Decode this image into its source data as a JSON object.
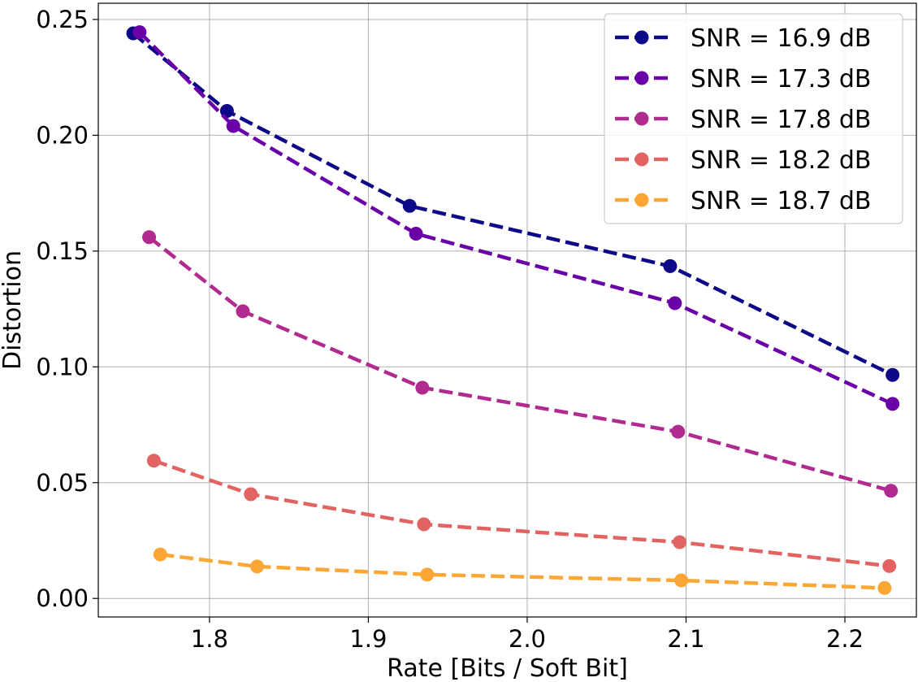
{
  "chart_data": {
    "type": "line",
    "title": "",
    "xlabel": "Rate [Bits / Soft Bit]",
    "ylabel": "Distortion",
    "xlim": [
      1.73,
      2.245
    ],
    "ylim": [
      -0.008,
      0.257
    ],
    "xticks": [
      1.8,
      1.9,
      2.0,
      2.1,
      2.2
    ],
    "xtick_labels": [
      "1.8",
      "1.9",
      "2.0",
      "2.1",
      "2.2"
    ],
    "yticks": [
      0.0,
      0.05,
      0.1,
      0.15,
      0.2,
      0.25
    ],
    "ytick_labels": [
      "0.00",
      "0.05",
      "0.10",
      "0.15",
      "0.20",
      "0.25"
    ],
    "grid": true,
    "legend_position": "top-right",
    "series": [
      {
        "name": "SNR = 16.9 dB",
        "color": "#0d0887",
        "x": [
          1.752,
          1.811,
          1.926,
          2.09,
          2.23
        ],
        "y": [
          0.244,
          0.2105,
          0.1695,
          0.1435,
          0.0965
        ]
      },
      {
        "name": "SNR = 17.3 dB",
        "color": "#6a00a8",
        "x": [
          1.756,
          1.815,
          1.93,
          2.093,
          2.23
        ],
        "y": [
          0.2445,
          0.204,
          0.1575,
          0.1275,
          0.084
        ]
      },
      {
        "name": "SNR = 17.8 dB",
        "color": "#b12a90",
        "x": [
          1.762,
          1.821,
          1.934,
          2.095,
          2.229
        ],
        "y": [
          0.156,
          0.124,
          0.091,
          0.072,
          0.0465
        ]
      },
      {
        "name": "SNR = 18.2 dB",
        "color": "#e16462",
        "x": [
          1.765,
          1.826,
          1.935,
          2.096,
          2.228
        ],
        "y": [
          0.0595,
          0.045,
          0.032,
          0.0243,
          0.014
        ]
      },
      {
        "name": "SNR = 18.7 dB",
        "color": "#fca636",
        "x": [
          1.769,
          1.83,
          1.937,
          2.097,
          2.225
        ],
        "y": [
          0.019,
          0.0138,
          0.0103,
          0.0078,
          0.0045
        ]
      }
    ]
  }
}
